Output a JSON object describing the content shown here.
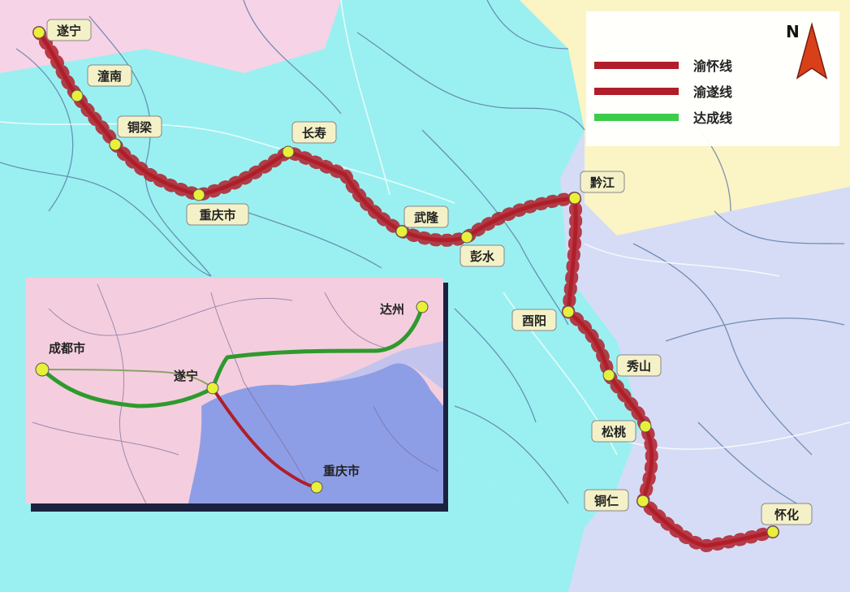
{
  "north": {
    "label": "N"
  },
  "legend": {
    "items": [
      {
        "label": "渝怀线",
        "color": "#b01e2a"
      },
      {
        "label": "渝遂线",
        "color": "#b01e2a"
      },
      {
        "label": "达成线",
        "color": "#3dcc4a"
      }
    ]
  },
  "stations": {
    "suining": "遂宁",
    "tongnan": "潼南",
    "tongliang": "铜梁",
    "chongqing": "重庆市",
    "changshou": "长寿",
    "wulong": "武隆",
    "pengshui": "彭水",
    "qianjiang": "黔江",
    "youyang": "酉阳",
    "xiushan": "秀山",
    "songtao": "松桃",
    "tongren": "铜仁",
    "huaihua": "怀化"
  },
  "inset": {
    "stations": {
      "dazhou": "达州",
      "chengdu": "成都市",
      "suining": "遂宁",
      "chongqing": "重庆市"
    }
  },
  "colors": {
    "region_cyan": "#9af0f0",
    "region_yellow": "#fbf4c4",
    "region_lavender": "#d6dcf5",
    "region_pink": "#f6d3e6",
    "inset_pink": "#f4cede",
    "inset_blue": "#8e9ee6",
    "rail_red": "#b01e2a",
    "rail_green": "#2e9a2e",
    "station_dot": "#e8f03a"
  }
}
